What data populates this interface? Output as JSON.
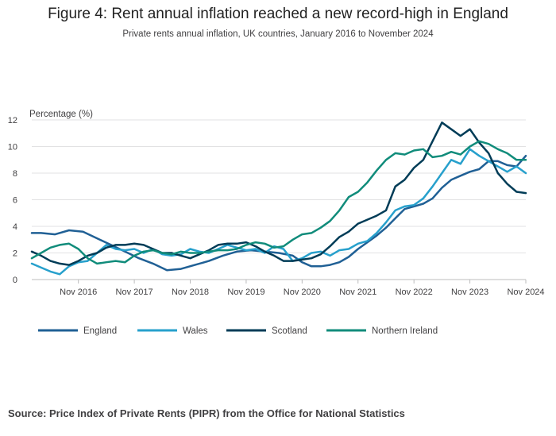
{
  "header": {
    "title": "Figure 4: Rent annual inflation reached a new record-high in England",
    "subtitle": "Private rents annual inflation, UK countries, January 2016 to November 2024"
  },
  "footer": {
    "source": "Source: Price Index of Private Rents (PIPR) from the Office for National Statistics"
  },
  "chart_data": {
    "type": "line",
    "title": "Figure 4: Rent annual inflation reached a new record-high in England",
    "subtitle": "Private rents annual inflation, UK countries, January 2016 to November 2024",
    "ylabel": "Percentage (%)",
    "xlabel": "",
    "ylim": [
      0,
      12
    ],
    "yticks": [
      0,
      2,
      4,
      6,
      8,
      10,
      12
    ],
    "xlim": [
      "2016-01",
      "2024-11"
    ],
    "xticks": [
      {
        "date": "2016-11",
        "label": "Nov 2016"
      },
      {
        "date": "2017-11",
        "label": "Nov 2017"
      },
      {
        "date": "2018-11",
        "label": "Nov 2018"
      },
      {
        "date": "2019-11",
        "label": "Nov 2019"
      },
      {
        "date": "2020-11",
        "label": "Nov 2020"
      },
      {
        "date": "2021-11",
        "label": "Nov 2021"
      },
      {
        "date": "2022-11",
        "label": "Nov 2022"
      },
      {
        "date": "2023-11",
        "label": "Nov 2023"
      },
      {
        "date": "2024-11",
        "label": "Nov 2024"
      }
    ],
    "grid": true,
    "legend_position": "bottom",
    "series": [
      {
        "name": "England",
        "color": "#206095",
        "start": "2016-01",
        "points": [
          [
            "2016-01",
            3.5
          ],
          [
            "2016-03",
            3.5
          ],
          [
            "2016-06",
            3.4
          ],
          [
            "2016-09",
            3.7
          ],
          [
            "2016-12",
            3.6
          ],
          [
            "2017-03",
            3.1
          ],
          [
            "2017-06",
            2.6
          ],
          [
            "2017-09",
            2.1
          ],
          [
            "2017-12",
            1.6
          ],
          [
            "2018-03",
            1.2
          ],
          [
            "2018-06",
            0.7
          ],
          [
            "2018-09",
            0.8
          ],
          [
            "2018-12",
            1.1
          ],
          [
            "2019-03",
            1.4
          ],
          [
            "2019-06",
            1.8
          ],
          [
            "2019-09",
            2.1
          ],
          [
            "2019-12",
            2.2
          ],
          [
            "2020-03",
            2.1
          ],
          [
            "2020-06",
            2.0
          ],
          [
            "2020-09",
            1.8
          ],
          [
            "2020-11",
            1.3
          ],
          [
            "2021-01",
            1.0
          ],
          [
            "2021-03",
            1.0
          ],
          [
            "2021-05",
            1.1
          ],
          [
            "2021-07",
            1.3
          ],
          [
            "2021-09",
            1.7
          ],
          [
            "2021-11",
            2.3
          ],
          [
            "2022-01",
            2.8
          ],
          [
            "2022-03",
            3.3
          ],
          [
            "2022-05",
            3.9
          ],
          [
            "2022-07",
            4.6
          ],
          [
            "2022-09",
            5.3
          ],
          [
            "2022-11",
            5.5
          ],
          [
            "2023-01",
            5.7
          ],
          [
            "2023-03",
            6.1
          ],
          [
            "2023-05",
            6.9
          ],
          [
            "2023-07",
            7.5
          ],
          [
            "2023-09",
            7.8
          ],
          [
            "2023-11",
            8.1
          ],
          [
            "2024-01",
            8.3
          ],
          [
            "2024-03",
            8.9
          ],
          [
            "2024-05",
            8.9
          ],
          [
            "2024-07",
            8.6
          ],
          [
            "2024-09",
            8.5
          ],
          [
            "2024-11",
            9.3
          ]
        ]
      },
      {
        "name": "Wales",
        "color": "#27a0cc",
        "points": [
          [
            "2016-01",
            1.2
          ],
          [
            "2016-03",
            0.9
          ],
          [
            "2016-05",
            0.6
          ],
          [
            "2016-07",
            0.4
          ],
          [
            "2016-09",
            1.0
          ],
          [
            "2016-11",
            1.3
          ],
          [
            "2017-01",
            1.4
          ],
          [
            "2017-03",
            2.0
          ],
          [
            "2017-05",
            2.6
          ],
          [
            "2017-07",
            2.3
          ],
          [
            "2017-09",
            2.2
          ],
          [
            "2017-11",
            2.3
          ],
          [
            "2018-01",
            2.0
          ],
          [
            "2018-03",
            2.3
          ],
          [
            "2018-05",
            1.9
          ],
          [
            "2018-07",
            1.8
          ],
          [
            "2018-09",
            1.9
          ],
          [
            "2018-11",
            2.3
          ],
          [
            "2019-01",
            2.1
          ],
          [
            "2019-03",
            2.0
          ],
          [
            "2019-05",
            2.3
          ],
          [
            "2019-07",
            2.6
          ],
          [
            "2019-09",
            2.4
          ],
          [
            "2019-11",
            2.2
          ],
          [
            "2020-01",
            2.3
          ],
          [
            "2020-03",
            2.0
          ],
          [
            "2020-05",
            2.5
          ],
          [
            "2020-07",
            2.3
          ],
          [
            "2020-09",
            1.4
          ],
          [
            "2020-11",
            1.6
          ],
          [
            "2021-01",
            2.0
          ],
          [
            "2021-03",
            2.1
          ],
          [
            "2021-05",
            1.8
          ],
          [
            "2021-07",
            2.2
          ],
          [
            "2021-09",
            2.3
          ],
          [
            "2021-11",
            2.7
          ],
          [
            "2022-01",
            2.9
          ],
          [
            "2022-03",
            3.5
          ],
          [
            "2022-05",
            4.3
          ],
          [
            "2022-07",
            5.2
          ],
          [
            "2022-09",
            5.5
          ],
          [
            "2022-11",
            5.6
          ],
          [
            "2023-01",
            6.1
          ],
          [
            "2023-03",
            7.0
          ],
          [
            "2023-05",
            8.0
          ],
          [
            "2023-07",
            9.0
          ],
          [
            "2023-09",
            8.7
          ],
          [
            "2023-11",
            9.8
          ],
          [
            "2024-01",
            9.3
          ],
          [
            "2024-03",
            8.9
          ],
          [
            "2024-05",
            8.5
          ],
          [
            "2024-07",
            8.1
          ],
          [
            "2024-09",
            8.5
          ],
          [
            "2024-11",
            8.0
          ]
        ]
      },
      {
        "name": "Scotland",
        "color": "#003c57",
        "points": [
          [
            "2016-01",
            2.1
          ],
          [
            "2016-03",
            1.8
          ],
          [
            "2016-05",
            1.4
          ],
          [
            "2016-07",
            1.2
          ],
          [
            "2016-09",
            1.1
          ],
          [
            "2016-11",
            1.4
          ],
          [
            "2017-01",
            1.8
          ],
          [
            "2017-03",
            2.0
          ],
          [
            "2017-05",
            2.4
          ],
          [
            "2017-07",
            2.6
          ],
          [
            "2017-09",
            2.6
          ],
          [
            "2017-11",
            2.7
          ],
          [
            "2018-01",
            2.6
          ],
          [
            "2018-03",
            2.3
          ],
          [
            "2018-05",
            2.0
          ],
          [
            "2018-07",
            2.0
          ],
          [
            "2018-09",
            1.8
          ],
          [
            "2018-11",
            1.6
          ],
          [
            "2019-01",
            1.9
          ],
          [
            "2019-03",
            2.2
          ],
          [
            "2019-05",
            2.6
          ],
          [
            "2019-07",
            2.7
          ],
          [
            "2019-09",
            2.7
          ],
          [
            "2019-11",
            2.8
          ],
          [
            "2020-01",
            2.5
          ],
          [
            "2020-03",
            2.1
          ],
          [
            "2020-05",
            1.8
          ],
          [
            "2020-07",
            1.4
          ],
          [
            "2020-09",
            1.4
          ],
          [
            "2020-11",
            1.5
          ],
          [
            "2021-01",
            1.6
          ],
          [
            "2021-03",
            1.9
          ],
          [
            "2021-05",
            2.5
          ],
          [
            "2021-07",
            3.2
          ],
          [
            "2021-09",
            3.6
          ],
          [
            "2021-11",
            4.2
          ],
          [
            "2022-01",
            4.5
          ],
          [
            "2022-03",
            4.8
          ],
          [
            "2022-05",
            5.2
          ],
          [
            "2022-07",
            7.0
          ],
          [
            "2022-09",
            7.5
          ],
          [
            "2022-11",
            8.4
          ],
          [
            "2023-01",
            9.0
          ],
          [
            "2023-03",
            10.4
          ],
          [
            "2023-05",
            11.8
          ],
          [
            "2023-07",
            11.3
          ],
          [
            "2023-09",
            10.8
          ],
          [
            "2023-11",
            11.3
          ],
          [
            "2024-01",
            10.3
          ],
          [
            "2024-03",
            9.5
          ],
          [
            "2024-05",
            8.0
          ],
          [
            "2024-07",
            7.2
          ],
          [
            "2024-09",
            6.6
          ],
          [
            "2024-11",
            6.5
          ]
        ]
      },
      {
        "name": "Northern Ireland",
        "color": "#118c7b",
        "points": [
          [
            "2016-01",
            1.6
          ],
          [
            "2016-03",
            2.0
          ],
          [
            "2016-05",
            2.4
          ],
          [
            "2016-07",
            2.6
          ],
          [
            "2016-09",
            2.7
          ],
          [
            "2016-11",
            2.3
          ],
          [
            "2017-01",
            1.6
          ],
          [
            "2017-03",
            1.2
          ],
          [
            "2017-05",
            1.3
          ],
          [
            "2017-07",
            1.4
          ],
          [
            "2017-09",
            1.3
          ],
          [
            "2017-11",
            1.8
          ],
          [
            "2018-01",
            2.1
          ],
          [
            "2018-03",
            2.2
          ],
          [
            "2018-05",
            2.0
          ],
          [
            "2018-07",
            1.9
          ],
          [
            "2018-09",
            2.1
          ],
          [
            "2018-11",
            2.0
          ],
          [
            "2019-01",
            2.0
          ],
          [
            "2019-03",
            2.1
          ],
          [
            "2019-05",
            2.2
          ],
          [
            "2019-07",
            2.2
          ],
          [
            "2019-09",
            2.3
          ],
          [
            "2019-11",
            2.6
          ],
          [
            "2020-01",
            2.8
          ],
          [
            "2020-03",
            2.7
          ],
          [
            "2020-05",
            2.4
          ],
          [
            "2020-07",
            2.5
          ],
          [
            "2020-09",
            3.0
          ],
          [
            "2020-11",
            3.4
          ],
          [
            "2021-01",
            3.5
          ],
          [
            "2021-03",
            3.9
          ],
          [
            "2021-05",
            4.4
          ],
          [
            "2021-07",
            5.2
          ],
          [
            "2021-09",
            6.2
          ],
          [
            "2021-11",
            6.6
          ],
          [
            "2022-01",
            7.3
          ],
          [
            "2022-03",
            8.2
          ],
          [
            "2022-05",
            9.0
          ],
          [
            "2022-07",
            9.5
          ],
          [
            "2022-09",
            9.4
          ],
          [
            "2022-11",
            9.7
          ],
          [
            "2023-01",
            9.8
          ],
          [
            "2023-03",
            9.2
          ],
          [
            "2023-05",
            9.3
          ],
          [
            "2023-07",
            9.6
          ],
          [
            "2023-09",
            9.4
          ],
          [
            "2023-11",
            10.0
          ],
          [
            "2024-01",
            10.4
          ],
          [
            "2024-03",
            10.2
          ],
          [
            "2024-05",
            9.8
          ],
          [
            "2024-07",
            9.5
          ],
          [
            "2024-09",
            9.0
          ],
          [
            "2024-11",
            9.0
          ]
        ]
      }
    ]
  }
}
